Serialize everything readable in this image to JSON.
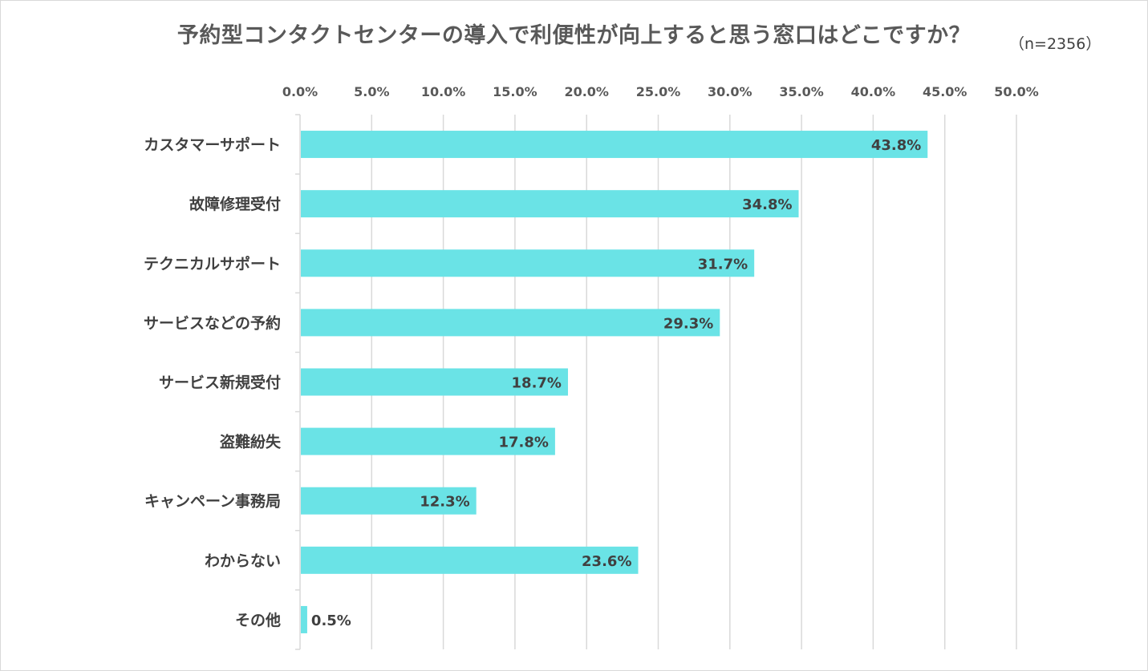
{
  "header": {
    "title": "予約型コンタクトセンターの導入で利便性が向上すると思う窓口はどこですか？",
    "sample_size": "（n=2356）"
  },
  "chart_data": {
    "type": "bar",
    "orientation": "horizontal",
    "title": "予約型コンタクトセンターの導入で利便性が向上すると思う窓口はどこですか？",
    "categories": [
      "カスタマーサポート",
      "故障修理受付",
      "テクニカルサポート",
      "サービスなどの予約",
      "サービス新規受付",
      "盗難紛失",
      "キャンペーン事務局",
      "わからない",
      "その他"
    ],
    "values": [
      43.8,
      34.8,
      31.7,
      29.3,
      18.7,
      17.8,
      12.3,
      23.6,
      0.5
    ],
    "value_labels": [
      "43.8%",
      "34.8%",
      "31.7%",
      "29.3%",
      "18.7%",
      "17.8%",
      "12.3%",
      "23.6%",
      "0.5%"
    ],
    "xlim": [
      0,
      50
    ],
    "x_ticks": [
      "0.0%",
      "5.0%",
      "10.0%",
      "15.0%",
      "20.0%",
      "25.0%",
      "30.0%",
      "35.0%",
      "40.0%",
      "45.0%",
      "50.0%"
    ],
    "x_axis_position": "top",
    "grid": true,
    "legend": "none",
    "bar_color": "#6ae3e6",
    "grid_color": "#d9d9d9"
  }
}
